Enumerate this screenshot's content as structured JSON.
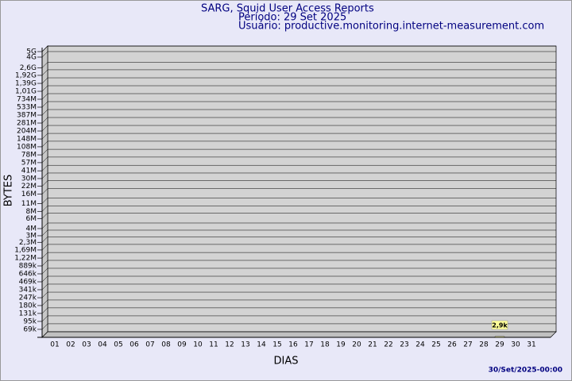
{
  "chart_data": {
    "type": "bar3d",
    "title": "SARG, Squid User Access Reports",
    "subtitle": "Período: 29 Set 2025",
    "user": "Usuário: productive.monitoring.internet-measurement.com",
    "xlabel": "DIAS",
    "ylabel": "BYTES",
    "footer": "30/Set/2025-00:00",
    "categories": [
      "01",
      "02",
      "03",
      "04",
      "05",
      "06",
      "07",
      "08",
      "09",
      "10",
      "11",
      "12",
      "13",
      "14",
      "15",
      "16",
      "17",
      "18",
      "19",
      "20",
      "21",
      "22",
      "23",
      "24",
      "25",
      "26",
      "27",
      "28",
      "29",
      "30",
      "31"
    ],
    "values": [
      null,
      null,
      null,
      null,
      null,
      null,
      null,
      null,
      null,
      null,
      null,
      null,
      null,
      null,
      null,
      null,
      null,
      null,
      null,
      null,
      null,
      null,
      null,
      null,
      null,
      null,
      null,
      null,
      2900,
      null,
      null
    ],
    "value_labels": [
      null,
      null,
      null,
      null,
      null,
      null,
      null,
      null,
      null,
      null,
      null,
      null,
      null,
      null,
      null,
      null,
      null,
      null,
      null,
      null,
      null,
      null,
      null,
      null,
      null,
      null,
      null,
      null,
      "2,9k",
      null,
      null
    ],
    "color": "#ffff99",
    "log": true,
    "grid": true,
    "ylim": [
      50000,
      5000000000
    ],
    "yticks": [
      {
        "value": 69000,
        "label": "69k"
      },
      {
        "value": 95000,
        "label": "95k"
      },
      {
        "value": 131000,
        "label": "131k"
      },
      {
        "value": 180000,
        "label": "180k"
      },
      {
        "value": 247000,
        "label": "247k"
      },
      {
        "value": 341000,
        "label": "341k"
      },
      {
        "value": 469000,
        "label": "469k"
      },
      {
        "value": 646000,
        "label": "646k"
      },
      {
        "value": 889000,
        "label": "889k"
      },
      {
        "value": 1220000,
        "label": "1,22M"
      },
      {
        "value": 1690000,
        "label": "1,69M"
      },
      {
        "value": 2300000,
        "label": "2,3M"
      },
      {
        "value": 3000000,
        "label": "3M"
      },
      {
        "value": 4000000,
        "label": "4M"
      },
      {
        "value": 6000000,
        "label": "6M"
      },
      {
        "value": 8000000,
        "label": "8M"
      },
      {
        "value": 11000000,
        "label": "11M"
      },
      {
        "value": 16000000,
        "label": "16M"
      },
      {
        "value": 22000000,
        "label": "22M"
      },
      {
        "value": 30000000,
        "label": "30M"
      },
      {
        "value": 41000000,
        "label": "41M"
      },
      {
        "value": 57000000,
        "label": "57M"
      },
      {
        "value": 78000000,
        "label": "78M"
      },
      {
        "value": 108000000,
        "label": "108M"
      },
      {
        "value": 148000000,
        "label": "148M"
      },
      {
        "value": 204000000,
        "label": "204M"
      },
      {
        "value": 281000000,
        "label": "281M"
      },
      {
        "value": 387000000,
        "label": "387M"
      },
      {
        "value": 533000000,
        "label": "533M"
      },
      {
        "value": 734000000,
        "label": "734M"
      },
      {
        "value": 1010000000,
        "label": "1,01G"
      },
      {
        "value": 1390000000,
        "label": "1,39G"
      },
      {
        "value": 1920000000,
        "label": "1,92G"
      },
      {
        "value": 2600000000,
        "label": "2,6G"
      },
      {
        "value": 4000000000,
        "label": "4G"
      },
      {
        "value": 5000000000,
        "label": "5G"
      }
    ]
  }
}
